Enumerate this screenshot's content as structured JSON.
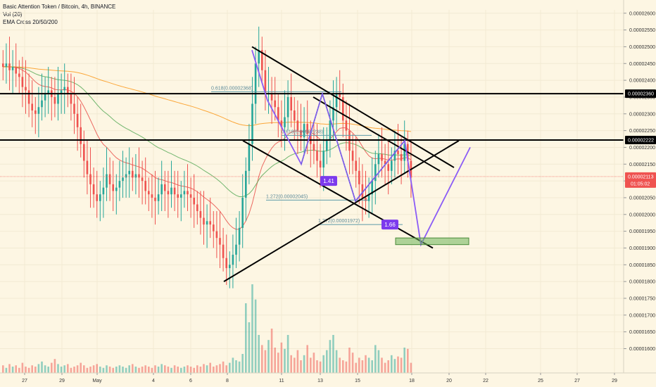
{
  "legend": {
    "title": "Basic Attention Token / Bitcoin, 4h, BINANCE",
    "vol": "Vol (20)",
    "ema": "EMA Cross 20/50/200"
  },
  "chart_data": {
    "type": "candlestick",
    "symbol": "BATBTC",
    "y_axis": {
      "min": 1.58e-05,
      "max": 2.61e-05,
      "ticks": [
        "0.00002600",
        "0.00002550",
        "0.00002500",
        "0.00002450",
        "0.00002400",
        "0.00002350",
        "0.00002300",
        "0.00002250",
        "0.00002200",
        "0.00002150",
        "0.00002100",
        "0.00002050",
        "0.00002000",
        "0.00001950",
        "0.00001900",
        "0.00001850",
        "0.00001800",
        "0.00001750",
        "0.00001700",
        "0.00001650",
        "0.00001600"
      ]
    },
    "x_axis": {
      "labels": [
        "27",
        "29",
        "May",
        "4",
        "6",
        "8",
        "11",
        "13",
        "15",
        "18",
        "20",
        "22",
        "25",
        "27",
        "29"
      ]
    },
    "horizontal_levels": [
      {
        "label": "0.00002360",
        "value": 2.36e-05
      },
      {
        "label": "0.00002222",
        "value": 2.222e-05
      }
    ],
    "current_price": {
      "label": "0.00002113",
      "value": 2.113e-05,
      "countdown": "01:05:02"
    },
    "fib_labels": [
      {
        "text": "0.618(0.00002368)",
        "value": 2.368e-05
      },
      {
        "text": "0.618(0.00002238)",
        "value": 2.238e-05
      },
      {
        "text": "1.272(0.00002045)",
        "value": 2.045e-05
      },
      {
        "text": "1.272(0.00001972)",
        "value": 1.972e-05
      }
    ],
    "ratios": [
      "1.41",
      "1.66"
    ],
    "target_zone": {
      "from": 1.91e-05,
      "to": 1.93e-05
    },
    "closes": [
      2.44e-05,
      2.45e-05,
      2.43e-05,
      2.44e-05,
      2.42e-05,
      2.41e-05,
      2.38e-05,
      2.37e-05,
      2.33e-05,
      2.31e-05,
      2.3e-05,
      2.32e-05,
      2.34e-05,
      2.36e-05,
      2.37e-05,
      2.35e-05,
      2.33e-05,
      2.36e-05,
      2.37e-05,
      2.38e-05,
      2.36e-05,
      2.33e-05,
      2.3e-05,
      2.26e-05,
      2.21e-05,
      2.16e-05,
      2.12e-05,
      2.09e-05,
      2.06e-05,
      2.04e-05,
      2.06e-05,
      2.08e-05,
      2.12e-05,
      2.09e-05,
      2.07e-05,
      2.08e-05,
      2.1e-05,
      2.11e-05,
      2.12e-05,
      2.13e-05,
      2.11e-05,
      2.12e-05,
      2.11e-05,
      2.1e-05,
      2.07e-05,
      2.06e-05,
      2.05e-05,
      2.04e-05,
      2.06e-05,
      2.09e-05,
      2.07e-05,
      2.06e-05,
      2.08e-05,
      2.06e-05,
      2.05e-05,
      2.06e-05,
      2.07e-05,
      2.06e-05,
      2.05e-05,
      2.03e-05,
      2.01e-05,
      1.99e-05,
      1.97e-05,
      1.98e-05,
      1.97e-05,
      1.95e-05,
      1.93e-05,
      1.91e-05,
      1.87e-05,
      1.84e-05,
      1.85e-05,
      1.88e-05,
      1.91e-05,
      1.96e-05,
      2.05e-05,
      2.13e-05,
      2.21e-05,
      2.33e-05,
      2.45e-05,
      2.49e-05,
      2.43e-05,
      2.36e-05,
      2.36e-05,
      2.34e-05,
      2.32e-05,
      2.28e-05,
      2.26e-05,
      2.29e-05,
      2.35e-05,
      2.31e-05,
      2.28e-05,
      2.25e-05,
      2.23e-05,
      2.27e-05,
      2.24e-05,
      2.21e-05,
      2.19e-05,
      2.16e-05,
      2.14e-05,
      2.19e-05,
      2.22e-05,
      2.28e-05,
      2.32e-05,
      2.36e-05,
      2.35e-05,
      2.28e-05,
      2.25e-05,
      2.19e-05,
      2.16e-05,
      2.13e-05,
      2.09e-05,
      2.05e-05,
      2.04e-05,
      2.06e-05,
      2.1e-05,
      2.15e-05,
      2.18e-05,
      2.16e-05,
      2.15e-05,
      2.13e-05,
      2.16e-05,
      2.19e-05,
      2.18e-05,
      2.16e-05,
      2.21e-05,
      2.16e-05,
      2.11e-05
    ],
    "volumes": [
      6,
      4,
      7,
      5,
      6,
      4,
      8,
      5,
      4,
      6,
      5,
      7,
      9,
      6,
      5,
      8,
      11,
      7,
      5,
      6,
      7,
      4,
      5,
      6,
      8,
      6,
      4,
      5,
      6,
      7,
      5,
      4,
      6,
      5,
      4,
      5,
      6,
      5,
      4,
      6,
      7,
      5,
      4,
      5,
      6,
      5,
      4,
      6,
      5,
      7,
      6,
      5,
      4,
      6,
      5,
      4,
      5,
      6,
      5,
      4,
      6,
      5,
      7,
      6,
      8,
      5,
      6,
      7,
      9,
      6,
      8,
      12,
      10,
      9,
      15,
      55,
      40,
      70,
      58,
      30,
      22,
      18,
      26,
      35,
      20,
      16,
      24,
      19,
      30,
      14,
      12,
      18,
      10,
      14,
      22,
      12,
      16,
      10,
      9,
      14,
      18,
      26,
      30,
      18,
      12,
      10,
      9,
      20,
      16,
      8,
      12,
      10,
      14,
      12,
      10,
      22,
      18,
      12,
      8,
      10,
      14,
      11,
      13,
      12,
      20,
      19,
      8
    ]
  }
}
